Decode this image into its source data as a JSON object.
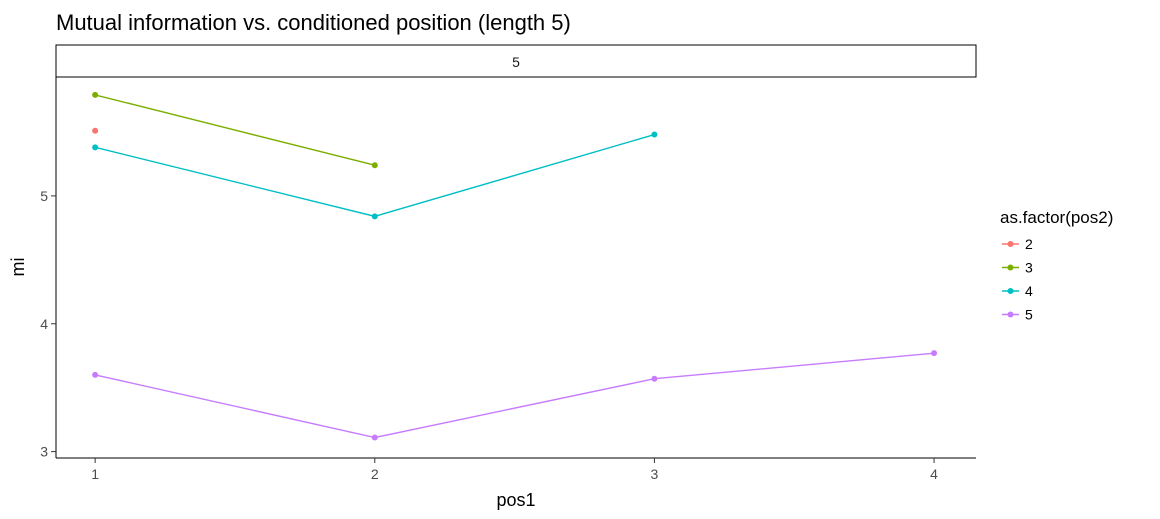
{
  "chart_data": {
    "type": "line",
    "title": "Mutual information vs. conditioned position (length 5)",
    "facet_label": "5",
    "xlabel": "pos1",
    "ylabel": "mi",
    "x_ticks": [
      1,
      2,
      3,
      4
    ],
    "y_ticks": [
      3,
      4,
      5
    ],
    "xlim": [
      0.86,
      4.15
    ],
    "ylim": [
      2.95,
      5.93
    ],
    "grid": false,
    "legend": {
      "title": "as.factor(pos2)",
      "placement": "right"
    },
    "series": [
      {
        "name": "2",
        "color": "#F8766D",
        "x": [
          1
        ],
        "y": [
          5.51
        ]
      },
      {
        "name": "3",
        "color": "#7CAE00",
        "x": [
          1,
          2
        ],
        "y": [
          5.79,
          5.24
        ]
      },
      {
        "name": "4",
        "color": "#00BFC4",
        "x": [
          1,
          2,
          3
        ],
        "y": [
          5.38,
          4.84,
          5.48
        ]
      },
      {
        "name": "5",
        "color": "#C77CFF",
        "x": [
          1,
          2,
          3,
          4
        ],
        "y": [
          3.6,
          3.11,
          3.57,
          3.77
        ]
      }
    ]
  }
}
